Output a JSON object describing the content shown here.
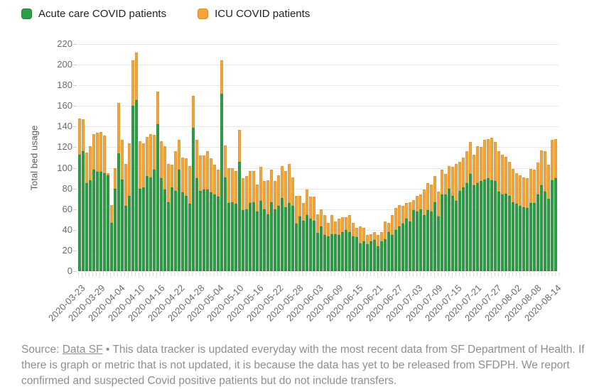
{
  "legend": {
    "items": [
      {
        "label": "Acute care COVID patients",
        "color": "#2f9e44",
        "border": "#23823a"
      },
      {
        "label": "ICU COVID patients",
        "color": "#f2a53e",
        "border": "#d98f28"
      }
    ]
  },
  "chart_data": {
    "type": "bar",
    "stacked": true,
    "title": "",
    "xlabel": "",
    "ylabel": "Total bed usage",
    "ylim": [
      0,
      220
    ],
    "ytick_step": 20,
    "grid": true,
    "legend_position": "top-left",
    "x_tick_labels": [
      "2020-03-23",
      "2020-03-29",
      "2020-04-04",
      "2020-04-10",
      "2020-04-16",
      "2020-04-22",
      "2020-04-28",
      "2020-05-04",
      "2020-05-10",
      "2020-05-16",
      "2020-05-22",
      "2020-05-28",
      "2020-06-03",
      "2020-06-09",
      "2020-06-15",
      "2020-06-21",
      "2020-06-27",
      "2020-07-03",
      "2020-07-09",
      "2020-07-15",
      "2020-07-21",
      "2020-07-27",
      "2020-08-02",
      "2020-08-08",
      "2020-08-14"
    ],
    "series": [
      {
        "name": "Acute care COVID patients",
        "color": "#2f9e44",
        "values": [
          113,
          116,
          85,
          88,
          98,
          96,
          96,
          95,
          93,
          47,
          80,
          114,
          89,
          63,
          73,
          160,
          166,
          80,
          81,
          92,
          91,
          98,
          142,
          90,
          79,
          67,
          81,
          78,
          98,
          76,
          73,
          65,
          139,
          90,
          78,
          79,
          79,
          76,
          74,
          72,
          172,
          91,
          66,
          67,
          65,
          106,
          59,
          60,
          66,
          67,
          58,
          68,
          60,
          55,
          67,
          60,
          63,
          71,
          62,
          66,
          63,
          46,
          53,
          49,
          54,
          51,
          49,
          37,
          43,
          35,
          34,
          36,
          36,
          35,
          38,
          40,
          38,
          34,
          33,
          27,
          29,
          26,
          29,
          30,
          24,
          29,
          31,
          38,
          35,
          40,
          43,
          46,
          51,
          48,
          59,
          58,
          60,
          54,
          59,
          58,
          67,
          53,
          74,
          74,
          80,
          73,
          68,
          78,
          81,
          85,
          94,
          83,
          85,
          87,
          89,
          90,
          88,
          87,
          77,
          74,
          75,
          73,
          67,
          65,
          63,
          62,
          61,
          66,
          66,
          74,
          83,
          77,
          70,
          88,
          90
        ]
      },
      {
        "name": "ICU COVID patients",
        "color": "#f2a53e",
        "values": [
          35,
          31,
          30,
          33,
          35,
          38,
          39,
          36,
          2,
          17,
          20,
          49,
          38,
          41,
          51,
          44,
          46,
          46,
          43,
          38,
          42,
          34,
          32,
          36,
          42,
          37,
          22,
          38,
          29,
          34,
          36,
          37,
          31,
          37,
          34,
          33,
          37,
          33,
          29,
          26,
          32,
          31,
          34,
          33,
          32,
          31,
          31,
          32,
          31,
          30,
          26,
          33,
          27,
          33,
          31,
          27,
          30,
          31,
          35,
          38,
          28,
          27,
          20,
          17,
          25,
          21,
          23,
          18,
          17,
          19,
          13,
          18,
          12,
          16,
          14,
          12,
          16,
          13,
          9,
          16,
          13,
          9,
          7,
          8,
          11,
          9,
          17,
          9,
          19,
          21,
          21,
          17,
          15,
          19,
          10,
          15,
          14,
          25,
          26,
          26,
          25,
          24,
          24,
          20,
          22,
          28,
          36,
          28,
          29,
          31,
          31,
          30,
          36,
          33,
          38,
          38,
          41,
          38,
          39,
          39,
          36,
          33,
          32,
          30,
          30,
          29,
          29,
          33,
          32,
          31,
          34,
          39,
          33,
          39,
          38
        ]
      }
    ]
  },
  "footer": {
    "source_prefix": "Source: ",
    "source_link": "Data SF",
    "source_text": " • This data tracker is updated everyday with the most recent data from SF Department of Health. If there is graph or metric that is not updated, it is because the data has yet to be released from SFDPH. We report confirmed and suspected Covid positive patients but do not include transfers."
  }
}
